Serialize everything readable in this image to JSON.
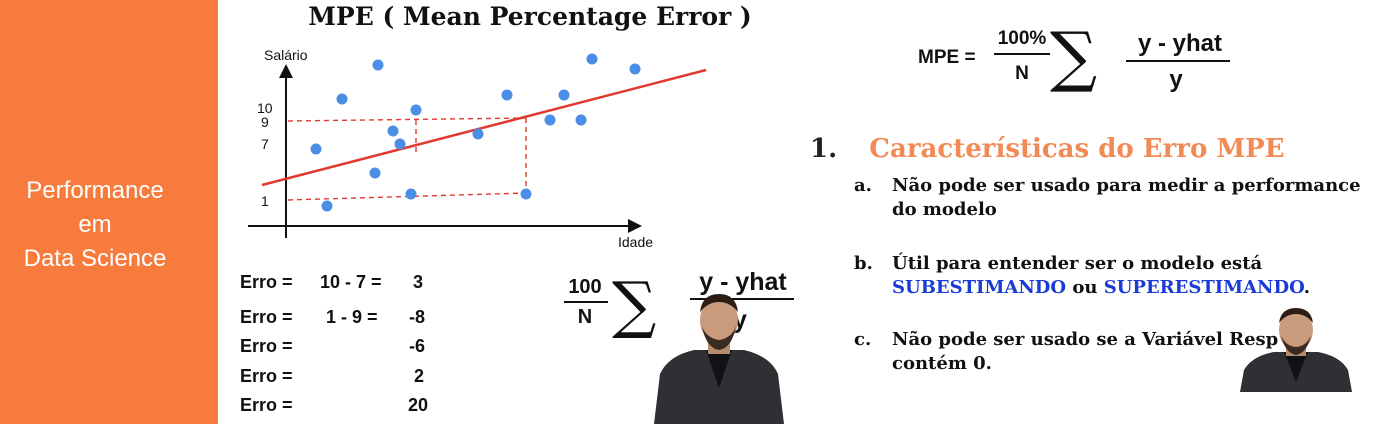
{
  "sidebar": {
    "lines": [
      "Performance",
      "em",
      "Data Science"
    ]
  },
  "slide": {
    "title": "MPE ( Mean Percentage Error )"
  },
  "chart_data": {
    "type": "scatter",
    "title": "",
    "xlabel": "Idade",
    "ylabel": "Salário",
    "y_tick_labels": [
      "10",
      "9",
      "7",
      "1"
    ]
  },
  "erros": {
    "label": "Erro =",
    "rows": [
      {
        "expr": "10 - 7 =",
        "value": "3"
      },
      {
        "expr": "1 - 9 =",
        "value": "-8"
      },
      {
        "expr": "",
        "value": "-6"
      },
      {
        "expr": "",
        "value": "2"
      },
      {
        "expr": "",
        "value": "20"
      }
    ]
  },
  "formula_left": {
    "numerator": "100",
    "denominator": "N",
    "sigma": "∑",
    "top": "y - yhat",
    "bottom": "y"
  },
  "formula_right": {
    "lhs": "MPE =",
    "numerator": "100%",
    "denominator": "N",
    "sigma": "∑",
    "top": "y - yhat",
    "bottom": "y"
  },
  "section": {
    "number": "1.",
    "title": "Características do Erro MPE",
    "items": [
      {
        "marker": "a.",
        "text": "Não pode ser usado para medir a performance do modelo"
      },
      {
        "marker": "b.",
        "text_before": "Útil para entender ser o modelo está",
        "highlight1": "SUBESTIMANDO",
        "middle": " ou ",
        "highlight2": "SUPERESTIMANDO",
        "after": "."
      },
      {
        "marker": "c.",
        "text_line1": "Não pode ser usado se a Variável Resp",
        "text_line2": "contém 0."
      }
    ]
  },
  "colors": {
    "sidebar": "#f77b3c",
    "heading": "#f28a55",
    "highlight": "#1a3bd6",
    "points": "#4a8ee6",
    "regression": "#e03a2f"
  }
}
